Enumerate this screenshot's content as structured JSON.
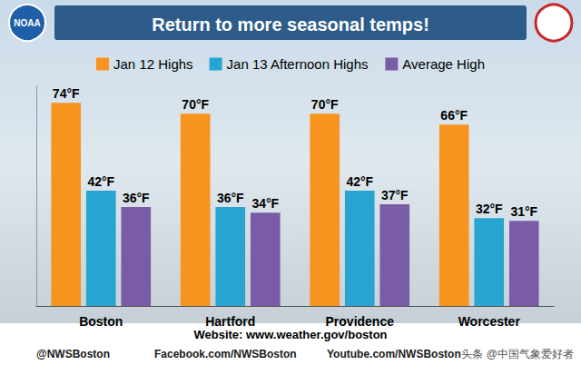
{
  "chart_data": {
    "type": "bar",
    "title": "Return to more seasonal temps!",
    "categories": [
      "Boston",
      "Hartford",
      "Providence",
      "Worcester"
    ],
    "series": [
      {
        "name": "Jan 12 Highs",
        "color": "#f7941d",
        "values": [
          74,
          70,
          70,
          66
        ],
        "value_labels": [
          "74°F",
          "70°F",
          "70°F",
          "66°F"
        ]
      },
      {
        "name": "Jan 13 Afternoon Highs",
        "color": "#27a4cf",
        "values": [
          42,
          36,
          42,
          32
        ],
        "value_labels": [
          "42°F",
          "36°F",
          "42°F",
          "32°F"
        ]
      },
      {
        "name": "Average High",
        "color": "#7a5ca6",
        "values": [
          36,
          34,
          37,
          31
        ],
        "value_labels": [
          "36°F",
          "34°F",
          "37°F",
          "31°F"
        ]
      }
    ],
    "ylim": [
      0,
      80
    ],
    "yticks": [],
    "grid": false,
    "legend": "top",
    "data_labels": true,
    "tick_labels": "x",
    "annotations": [
      "NOAA",
      "Website: www.weather.gov/boston",
      "@NWSBoston",
      "Facebook.com/NWSBoston",
      "Youtube.com/NWSBoston",
      "头条 @中国气象爱好者"
    ]
  }
}
